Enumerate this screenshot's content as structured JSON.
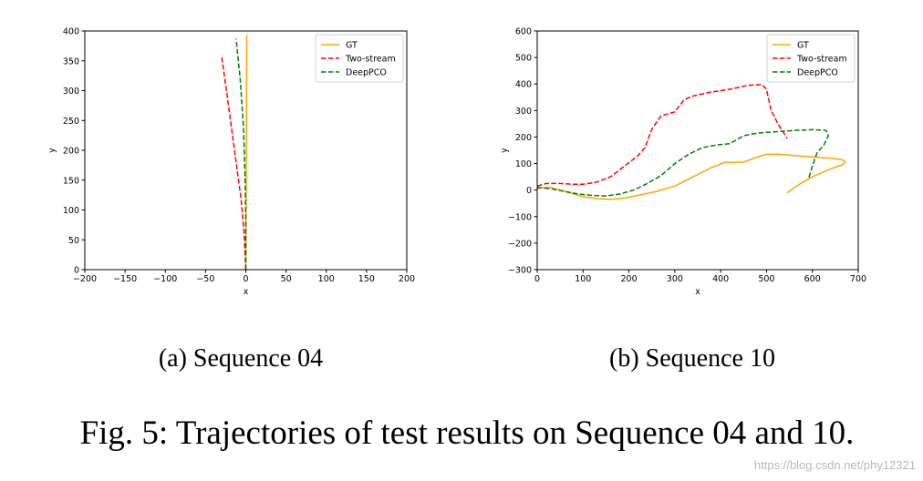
{
  "figure": {
    "caption": "Fig. 5: Trajectories of test results on Sequence 04 and 10.",
    "watermark": "https://blog.csdn.net/phy12321"
  },
  "chart_data": [
    {
      "type": "line",
      "subcaption": "(a)  Sequence 04",
      "xlabel": "x",
      "ylabel": "y",
      "xlim": [
        -200,
        200
      ],
      "ylim": [
        0,
        400
      ],
      "xticks": [
        -200,
        -150,
        -100,
        -50,
        0,
        50,
        100,
        150,
        200
      ],
      "yticks": [
        0,
        50,
        100,
        150,
        200,
        250,
        300,
        350,
        400
      ],
      "legend": {
        "placement": "top-right"
      },
      "series": [
        {
          "name": "GT",
          "color": "#ffa500",
          "dash": "solid",
          "x": [
            0,
            0.2,
            0.4,
            0.6,
            0.8,
            1.0,
            1.1
          ],
          "y": [
            0,
            60,
            120,
            180,
            250,
            320,
            393
          ]
        },
        {
          "name": "Two-stream",
          "color": "#ff0000",
          "dash": "dashed",
          "x": [
            0,
            -2,
            -6,
            -12,
            -18,
            -24,
            -30
          ],
          "y": [
            0,
            60,
            120,
            180,
            240,
            300,
            358
          ]
        },
        {
          "name": "DeepPCO",
          "color": "#008000",
          "dash": "dashed",
          "x": [
            0,
            0,
            -1,
            -3,
            -7,
            -12
          ],
          "y": [
            0,
            80,
            160,
            240,
            320,
            387
          ]
        }
      ]
    },
    {
      "type": "line",
      "subcaption": "(b)  Sequence 10",
      "xlabel": "x",
      "ylabel": "y",
      "xlim": [
        0,
        700
      ],
      "ylim": [
        -300,
        600
      ],
      "xticks": [
        0,
        100,
        200,
        300,
        400,
        500,
        600,
        700
      ],
      "yticks": [
        -300,
        -200,
        -100,
        0,
        100,
        200,
        300,
        400,
        500,
        600
      ],
      "legend": {
        "placement": "top-right"
      },
      "series": [
        {
          "name": "GT",
          "color": "#ffa500",
          "dash": "solid",
          "x": [
            0,
            15,
            30,
            50,
            70,
            100,
            130,
            160,
            190,
            220,
            260,
            300,
            340,
            380,
            410,
            450,
            480,
            500,
            530,
            560,
            600,
            640,
            665,
            672,
            665,
            640,
            600,
            570,
            545
          ],
          "y": [
            5,
            10,
            10,
            0,
            -10,
            -25,
            -32,
            -35,
            -30,
            -20,
            -5,
            15,
            50,
            85,
            105,
            105,
            125,
            135,
            135,
            130,
            125,
            120,
            115,
            105,
            95,
            80,
            50,
            20,
            -10
          ]
        },
        {
          "name": "Two-stream",
          "color": "#ff0000",
          "dash": "dashed",
          "x": [
            0,
            20,
            50,
            80,
            100,
            130,
            160,
            190,
            220,
            235,
            250,
            270,
            300,
            320,
            340,
            380,
            420,
            460,
            490,
            500,
            510,
            525,
            545
          ],
          "y": [
            15,
            25,
            25,
            22,
            22,
            30,
            50,
            90,
            130,
            160,
            230,
            280,
            295,
            340,
            355,
            370,
            380,
            395,
            398,
            380,
            300,
            250,
            195
          ]
        },
        {
          "name": "DeepPCO",
          "color": "#008000",
          "dash": "dashed",
          "x": [
            0,
            30,
            60,
            90,
            120,
            150,
            180,
            210,
            240,
            270,
            300,
            330,
            360,
            390,
            420,
            450,
            480,
            520,
            560,
            600,
            630,
            635,
            625,
            610,
            600,
            592
          ],
          "y": [
            10,
            5,
            -5,
            -15,
            -20,
            -22,
            -15,
            0,
            25,
            55,
            100,
            135,
            160,
            170,
            175,
            205,
            215,
            220,
            225,
            228,
            225,
            205,
            170,
            140,
            90,
            45
          ]
        }
      ]
    }
  ]
}
